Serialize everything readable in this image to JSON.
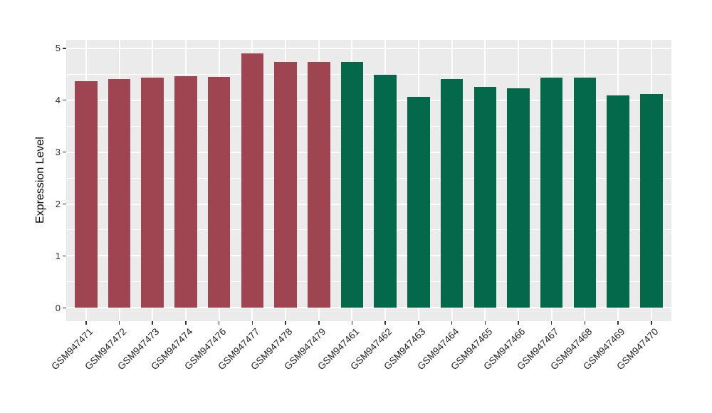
{
  "chart_data": {
    "type": "bar",
    "title": "",
    "xlabel": "",
    "ylabel": "Expression Level",
    "ylim": [
      0,
      5.15
    ],
    "yticks": [
      0,
      1,
      2,
      3,
      4,
      5
    ],
    "minor_ytick_interval": 0.5,
    "grid": true,
    "legend_position": "none",
    "panel_background": "#EBEBEB",
    "grid_color": "#FFFFFF",
    "categories": [
      "GSM947471",
      "GSM947472",
      "GSM947473",
      "GSM947474",
      "GSM947476",
      "GSM947477",
      "GSM947478",
      "GSM947479",
      "GSM947461",
      "GSM947462",
      "GSM947463",
      "GSM947464",
      "GSM947465",
      "GSM947466",
      "GSM947467",
      "GSM947468",
      "GSM947469",
      "GSM947470"
    ],
    "values": [
      4.37,
      4.41,
      4.44,
      4.46,
      4.45,
      4.9,
      4.73,
      4.73,
      4.73,
      4.49,
      4.07,
      4.41,
      4.26,
      4.23,
      4.43,
      4.43,
      4.09,
      4.12
    ],
    "bar_colors": [
      "#9E4551",
      "#9E4551",
      "#9E4551",
      "#9E4551",
      "#9E4551",
      "#9E4551",
      "#9E4551",
      "#9E4551",
      "#03694A",
      "#03694A",
      "#03694A",
      "#03694A",
      "#03694A",
      "#03694A",
      "#03694A",
      "#03694A",
      "#03694A",
      "#03694A"
    ],
    "groups": [
      {
        "color": "#9E4551",
        "samples": [
          "GSM947471",
          "GSM947472",
          "GSM947473",
          "GSM947474",
          "GSM947476",
          "GSM947477",
          "GSM947478",
          "GSM947479"
        ]
      },
      {
        "color": "#03694A",
        "samples": [
          "GSM947461",
          "GSM947462",
          "GSM947463",
          "GSM947464",
          "GSM947465",
          "GSM947466",
          "GSM947467",
          "GSM947468",
          "GSM947469",
          "GSM947470"
        ]
      }
    ]
  }
}
